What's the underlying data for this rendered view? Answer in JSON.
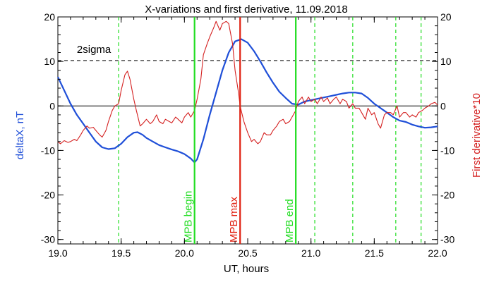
{
  "chart_data": {
    "type": "line",
    "title": "X-variations and first derivative, 11.09.2018",
    "xlabel": "UT, hours",
    "ylabel_left": "deltaX, nT",
    "ylabel_right": "First derivative*10",
    "xlim": [
      19.0,
      22.0
    ],
    "ylim": [
      -31,
      20
    ],
    "grid": false,
    "x_ticks": [
      19.0,
      19.5,
      20.0,
      20.5,
      21.0,
      21.5,
      22.0
    ],
    "x_tick_labels": [
      "19.0",
      "19.5",
      "20.0",
      "20.5",
      "21.0",
      "21.5",
      "22.0"
    ],
    "y_ticks": [
      20,
      10,
      0,
      -10,
      -20,
      -30
    ],
    "y_tick_labels": [
      "20",
      "10",
      "0",
      "-10",
      "-20",
      "-30"
    ],
    "sigma_level": 10.2,
    "sigma_label": "2sigma",
    "zero_line": 0,
    "colors": {
      "deltaX": "#1f4fd8",
      "derivative": "#d42020",
      "mpb_line": "#22dd22",
      "mpb_max_line": "#e02010",
      "dashed_green": "#22dd22",
      "axis": "#000000",
      "ylabel_left": "#1f4fd8",
      "ylabel_right": "#d42020"
    },
    "markers": [
      {
        "x": 20.08,
        "label": "MPB begin",
        "kind": "mpb"
      },
      {
        "x": 20.44,
        "label": "MPB max",
        "kind": "max"
      },
      {
        "x": 20.88,
        "label": "MPB end",
        "kind": "mpb"
      }
    ],
    "dashed_green_x": [
      19.48,
      21.03,
      21.33,
      21.67,
      21.87
    ],
    "series": [
      {
        "name": "deltaX, nT",
        "axis": "left",
        "x": [
          19.0,
          19.05,
          19.1,
          19.15,
          19.2,
          19.25,
          19.3,
          19.35,
          19.4,
          19.45,
          19.5,
          19.55,
          19.6,
          19.63,
          19.67,
          19.7,
          19.75,
          19.8,
          19.85,
          19.9,
          19.95,
          20.0,
          20.05,
          20.08,
          20.1,
          20.15,
          20.2,
          20.25,
          20.3,
          20.35,
          20.4,
          20.45,
          20.5,
          20.55,
          20.6,
          20.65,
          20.7,
          20.75,
          20.8,
          20.85,
          20.9,
          20.95,
          21.0,
          21.05,
          21.1,
          21.15,
          21.2,
          21.25,
          21.3,
          21.35,
          21.4,
          21.45,
          21.5,
          21.55,
          21.6,
          21.65,
          21.7,
          21.75,
          21.8,
          21.85,
          21.9,
          21.95,
          22.0
        ],
        "values": [
          6.5,
          3.5,
          0.5,
          -2.0,
          -4.0,
          -6.0,
          -8.0,
          -9.3,
          -9.7,
          -9.5,
          -8.5,
          -7.0,
          -6.0,
          -5.9,
          -6.5,
          -7.2,
          -8.0,
          -8.8,
          -9.3,
          -9.8,
          -10.2,
          -10.8,
          -11.8,
          -12.7,
          -12.0,
          -7.5,
          -2.0,
          3.0,
          8.0,
          12.0,
          14.5,
          15.0,
          14.2,
          12.3,
          10.0,
          7.5,
          5.2,
          3.2,
          1.8,
          0.5,
          0.3,
          1.0,
          1.3,
          1.6,
          1.9,
          2.2,
          2.5,
          2.8,
          3.0,
          3.0,
          2.8,
          1.8,
          0.5,
          -0.5,
          -1.5,
          -2.5,
          -3.3,
          -3.6,
          -4.2,
          -4.6,
          -4.9,
          -4.8,
          -4.6
        ]
      },
      {
        "name": "First derivative*10",
        "axis": "right",
        "x": [
          19.0,
          19.02,
          19.05,
          19.08,
          19.1,
          19.13,
          19.15,
          19.18,
          19.2,
          19.23,
          19.25,
          19.28,
          19.3,
          19.33,
          19.35,
          19.38,
          19.4,
          19.43,
          19.45,
          19.48,
          19.5,
          19.53,
          19.55,
          19.57,
          19.6,
          19.62,
          19.65,
          19.67,
          19.7,
          19.73,
          19.75,
          19.78,
          19.8,
          19.83,
          19.85,
          19.88,
          19.9,
          19.93,
          19.95,
          19.98,
          20.0,
          20.03,
          20.05,
          20.08,
          20.1,
          20.13,
          20.15,
          20.18,
          20.2,
          20.23,
          20.25,
          20.28,
          20.3,
          20.33,
          20.35,
          20.38,
          20.4,
          20.43,
          20.44,
          20.47,
          20.5,
          20.53,
          20.55,
          20.58,
          20.6,
          20.63,
          20.65,
          20.68,
          20.7,
          20.73,
          20.75,
          20.78,
          20.8,
          20.83,
          20.85,
          20.88,
          20.9,
          20.93,
          20.95,
          20.98,
          21.0,
          21.03,
          21.05,
          21.08,
          21.1,
          21.13,
          21.15,
          21.18,
          21.2,
          21.23,
          21.25,
          21.28,
          21.3,
          21.33,
          21.35,
          21.38,
          21.4,
          21.43,
          21.45,
          21.48,
          21.5,
          21.53,
          21.55,
          21.58,
          21.6,
          21.63,
          21.65,
          21.68,
          21.7,
          21.73,
          21.75,
          21.78,
          21.8,
          21.83,
          21.85,
          21.88,
          21.9,
          21.93,
          21.95,
          21.98,
          22.0
        ],
        "values": [
          -8.0,
          -8.5,
          -7.8,
          -8.2,
          -8.0,
          -7.5,
          -7.8,
          -6.5,
          -5.5,
          -4.5,
          -5.0,
          -4.8,
          -5.5,
          -6.5,
          -7.0,
          -5.5,
          -3.5,
          -1.0,
          0.0,
          0.5,
          3.5,
          7.0,
          7.8,
          6.0,
          1.5,
          -1.0,
          -4.5,
          -4.0,
          -3.0,
          -4.0,
          -3.5,
          -2.0,
          -3.5,
          -4.0,
          -3.0,
          -3.5,
          -3.8,
          -2.5,
          -3.0,
          -3.8,
          -2.5,
          -1.5,
          -2.5,
          -1.0,
          1.5,
          6.0,
          11.5,
          14.0,
          15.5,
          17.5,
          19.0,
          17.0,
          18.5,
          19.0,
          18.5,
          14.0,
          8.0,
          2.5,
          0.0,
          -3.5,
          -6.0,
          -8.0,
          -7.5,
          -8.5,
          -8.0,
          -6.0,
          -6.5,
          -6.5,
          -5.5,
          -4.5,
          -3.5,
          -3.0,
          -4.0,
          -3.5,
          -2.5,
          -1.0,
          1.0,
          2.0,
          0.5,
          2.0,
          1.0,
          1.5,
          0.5,
          2.0,
          1.0,
          1.8,
          0.5,
          1.5,
          2.0,
          0.5,
          1.5,
          1.0,
          -0.5,
          0.5,
          -0.5,
          -0.5,
          -1.5,
          -3.0,
          -0.5,
          -2.0,
          -1.5,
          -4.0,
          -5.0,
          -2.0,
          -1.5,
          -1.5,
          -2.0,
          0.0,
          -2.5,
          -1.5,
          -1.5,
          -2.5,
          -2.0,
          -2.5,
          -1.5,
          -1.0,
          -0.5,
          0.0,
          0.5,
          0.8,
          0.2
        ]
      }
    ]
  }
}
